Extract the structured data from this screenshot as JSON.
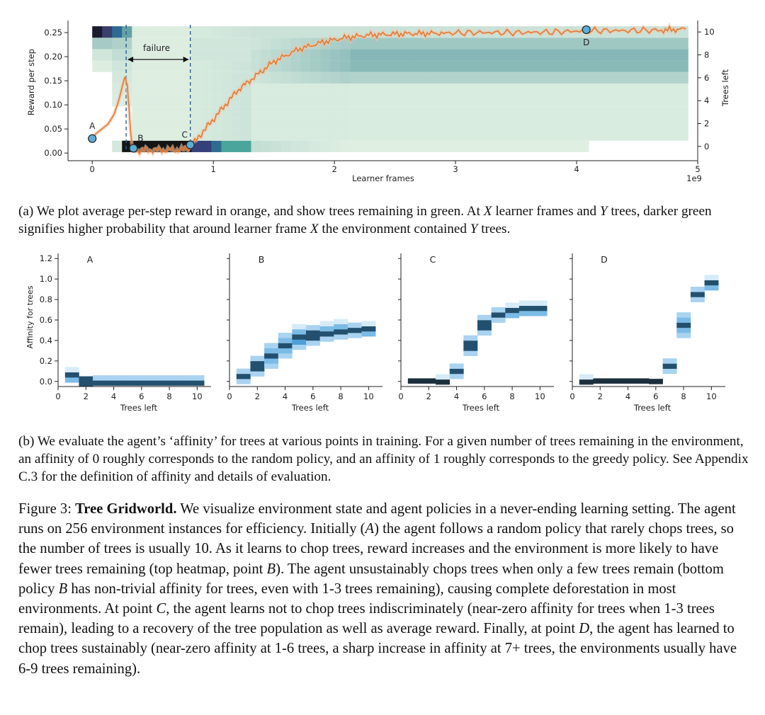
{
  "top_chart": {
    "ylabel_left": "Reward per step",
    "ylabel_right": "Trees left",
    "xlabel": "Learner frames",
    "x_exponent": "1e9",
    "x_ticks": [
      "0",
      "1",
      "2",
      "3",
      "4",
      "5"
    ],
    "y_left_ticks": [
      "0.00",
      "0.05",
      "0.10",
      "0.15",
      "0.20",
      "0.25"
    ],
    "y_right_ticks": [
      "0",
      "2",
      "4",
      "6",
      "8",
      "10"
    ],
    "failure_label": "failure",
    "points": [
      "A",
      "B",
      "C",
      "D"
    ]
  },
  "bottom_panels": {
    "ylabel": "Affinity for trees",
    "xlabel": "Trees left",
    "x_ticks": [
      "0",
      "2",
      "4",
      "6",
      "8",
      "10"
    ],
    "y_ticks": [
      "0.0",
      "0.2",
      "0.4",
      "0.6",
      "0.8",
      "1.0",
      "1.2"
    ],
    "titles": [
      "A",
      "B",
      "C",
      "D"
    ]
  },
  "caption_a": {
    "p1": "(a) We plot average per-step reward in orange, and show trees remaining in green. At ",
    "v1": "X",
    "p2": " learner frames and ",
    "v2": "Y",
    "p3": " trees, darker green signifies higher probability that around learner frame ",
    "v3": "X",
    "p4": " the environment contained ",
    "v4": "Y",
    "p5": " trees."
  },
  "caption_b": "(b) We evaluate the agent’s ‘affinity’ for trees at various points in training. For a given number of trees remaining in the environment, an affinity of 0 roughly corresponds to the random policy, and an affinity of 1 roughly corresponds to the greedy policy. See Appendix C.3 for the definition of affinity and details of evaluation.",
  "figure_caption": {
    "label": "Figure 3: ",
    "title": "Tree Gridworld.",
    "s1": " We visualize environment state and agent policies in a never-ending learning setting. The agent runs on 256 environment instances for efficiency. Initially (",
    "vA": "A",
    "s2": ") the agent follows a random policy that rarely chops trees, so the number of trees is usually 10. As it learns to chop trees, reward increases and the environment is more likely to have fewer trees remaining (top heatmap, point ",
    "vB1": "B",
    "s3": "). The agent unsustainably chops trees when only a few trees remain (bottom policy ",
    "vB2": "B",
    "s4": " has non-trivial affinity for trees, even with 1-3 trees remaining), causing complete deforestation in most environments. At point ",
    "vC": "C",
    "s5": ", the agent learns not to chop trees indiscriminately (near-zero affinity for trees when 1-3 trees remain), leading to a recovery of the tree population as well as average reward. Finally, at point ",
    "vD": "D",
    "s6": ", the agent has learned to chop trees sustainably (near-zero affinity at 1-6 trees, a sharp increase in affinity at 7+ trees, the environments usually have 6-9 trees remaining)."
  },
  "colors": {
    "reward_line": "#e07b39",
    "marker_fill": "#5aaed8",
    "heat_green_light": "#e6f4e6",
    "heat_green_dark": "#2e7f8a",
    "heat_blue": "#3a92d0"
  },
  "chart_data": [
    {
      "type": "line",
      "title": "",
      "xlabel": "Learner frames",
      "ylabel": "Reward per step",
      "xlim": [
        -0.2,
        5.0
      ],
      "ylim": [
        -0.01,
        0.275
      ],
      "x_scale_note": "1e9",
      "series": [
        {
          "name": "Average reward per step",
          "x": [
            0.0,
            0.03,
            0.08,
            0.13,
            0.18,
            0.22,
            0.25,
            0.27,
            0.29,
            0.31,
            0.33,
            0.36,
            0.45,
            0.6,
            0.75,
            0.82,
            0.9,
            1.0,
            1.1,
            1.2,
            1.35,
            1.5,
            1.7,
            1.9,
            2.1,
            2.3,
            2.5,
            2.7,
            2.9,
            3.2,
            3.5,
            3.8,
            4.1,
            4.4,
            4.7,
            4.9
          ],
          "y": [
            0.03,
            0.04,
            0.05,
            0.06,
            0.08,
            0.11,
            0.14,
            0.158,
            0.14,
            0.07,
            0.008,
            0.005,
            0.006,
            0.006,
            0.007,
            0.015,
            0.04,
            0.07,
            0.1,
            0.13,
            0.16,
            0.19,
            0.215,
            0.23,
            0.24,
            0.245,
            0.247,
            0.248,
            0.249,
            0.25,
            0.25,
            0.251,
            0.254,
            0.254,
            0.255,
            0.257
          ]
        }
      ],
      "points": [
        {
          "label": "A",
          "x": 0.0,
          "y": 0.03
        },
        {
          "label": "B",
          "x": 0.34,
          "y": 0.01
        },
        {
          "label": "C",
          "x": 0.81,
          "y": 0.017
        },
        {
          "label": "D",
          "x": 4.08,
          "y": 0.256
        }
      ],
      "failure_interval": [
        0.28,
        0.81
      ],
      "secondary_axis": {
        "label": "Trees left",
        "range": [
          -1,
          11
        ],
        "ticks": [
          0,
          2,
          4,
          6,
          8,
          10
        ]
      },
      "heatmap_note": "Green heatmap of trees remaining over learner frames; dark band at 10 trees early, at 0 trees during failure (0.3–0.8), and at 6–9 trees later."
    },
    {
      "type": "heatmap",
      "title": "A",
      "xlabel": "Trees left",
      "ylabel": "Affinity for trees",
      "xlim": [
        0,
        11
      ],
      "ylim": [
        -0.05,
        1.25
      ],
      "trees": [
        1,
        2,
        3,
        4,
        5,
        6,
        7,
        8,
        9,
        10
      ],
      "affinity_center": [
        0.05,
        0.0,
        0.0,
        0.0,
        0.0,
        0.0,
        0.0,
        0.0,
        0.0,
        0.0
      ],
      "affinity_spread": [
        0.12,
        0.1,
        0.08,
        0.08,
        0.08,
        0.08,
        0.08,
        0.08,
        0.08,
        0.08
      ]
    },
    {
      "type": "heatmap",
      "title": "B",
      "xlabel": "Trees left",
      "ylabel": "Affinity for trees",
      "xlim": [
        0,
        11
      ],
      "ylim": [
        -0.05,
        1.25
      ],
      "trees": [
        1,
        2,
        3,
        4,
        5,
        6,
        7,
        8,
        9,
        10
      ],
      "affinity_center": [
        0.05,
        0.15,
        0.25,
        0.35,
        0.42,
        0.45,
        0.48,
        0.5,
        0.5,
        0.5
      ],
      "affinity_spread": [
        0.15,
        0.2,
        0.25,
        0.25,
        0.22,
        0.2,
        0.18,
        0.18,
        0.15,
        0.12
      ]
    },
    {
      "type": "heatmap",
      "title": "C",
      "xlabel": "Trees left",
      "ylabel": "Affinity for trees",
      "xlim": [
        0,
        11
      ],
      "ylim": [
        -0.05,
        1.25
      ],
      "trees": [
        1,
        2,
        3,
        4,
        5,
        6,
        7,
        8,
        9,
        10
      ],
      "affinity_center": [
        0.0,
        0.0,
        0.0,
        0.1,
        0.35,
        0.55,
        0.65,
        0.68,
        0.7,
        0.7
      ],
      "affinity_spread": [
        0.04,
        0.04,
        0.06,
        0.15,
        0.2,
        0.2,
        0.15,
        0.12,
        0.12,
        0.12
      ]
    },
    {
      "type": "heatmap",
      "title": "D",
      "xlabel": "Trees left",
      "ylabel": "Affinity for trees",
      "xlim": [
        0,
        11
      ],
      "ylim": [
        -0.05,
        1.25
      ],
      "trees": [
        1,
        2,
        3,
        4,
        5,
        6,
        7,
        8,
        9,
        10
      ],
      "affinity_center": [
        0.0,
        0.0,
        0.0,
        0.0,
        0.0,
        0.0,
        0.15,
        0.55,
        0.85,
        0.95
      ],
      "affinity_spread": [
        0.06,
        0.04,
        0.04,
        0.04,
        0.04,
        0.05,
        0.15,
        0.25,
        0.15,
        0.12
      ]
    }
  ]
}
